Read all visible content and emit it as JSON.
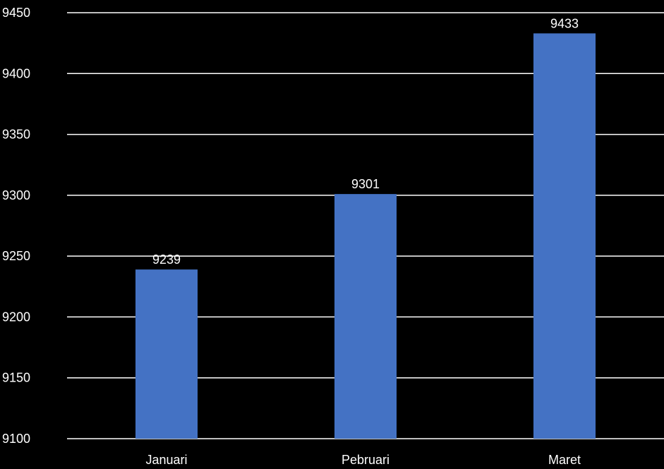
{
  "chart_data": {
    "type": "bar",
    "categories": [
      "Januari",
      "Pebruari",
      "Maret"
    ],
    "values": [
      9239,
      9301,
      9433
    ],
    "data_labels": [
      "9239",
      "9301",
      "9433"
    ],
    "ylim": [
      9100,
      9450
    ],
    "yticks": [
      9100,
      9150,
      9200,
      9250,
      9300,
      9350,
      9400,
      9450
    ],
    "ytick_labels": [
      "9100",
      "9150",
      "9200",
      "9250",
      "9300",
      "9350",
      "9400",
      "9450"
    ],
    "grid": true,
    "legend": "none",
    "title": "",
    "xlabel": "",
    "ylabel": ""
  },
  "colors": {
    "background": "#000000",
    "bar": "#4472C4",
    "text": "#ffffff",
    "grid": "#ffffff"
  }
}
